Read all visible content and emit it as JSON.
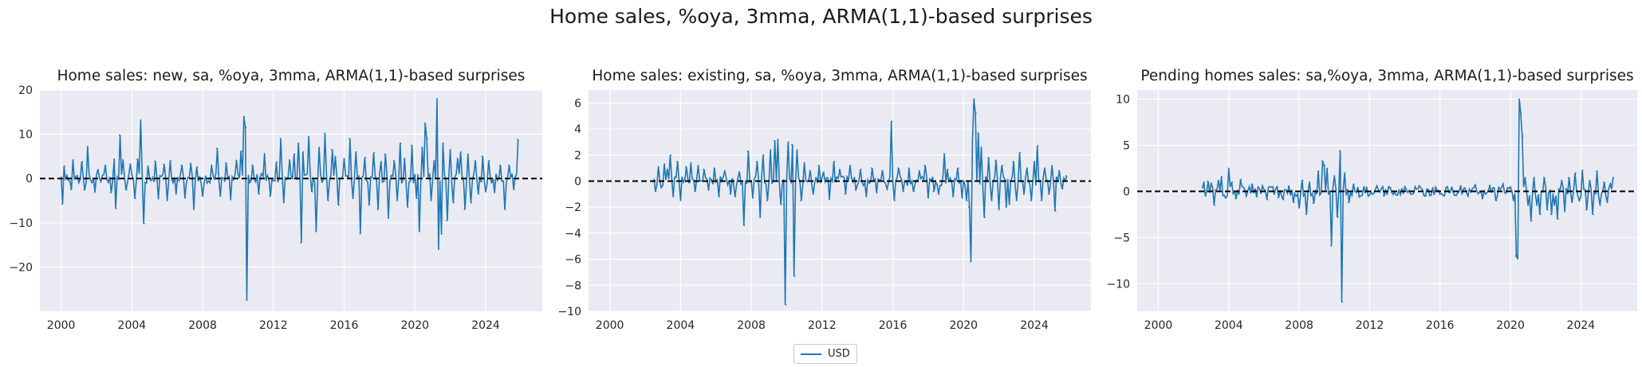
{
  "suptitle": "Home sales, %oya, 3mma, ARMA(1,1)-based surprises",
  "colors": {
    "line": "#1f77b4",
    "plot_bg": "#eaeaf2",
    "grid": "#ffffff",
    "zero_line": "#000000"
  },
  "chart_data": [
    {
      "type": "line",
      "title": "Home sales: new, sa, %oya, 3mma, ARMA(1,1)-based surprises",
      "series_name": "USD",
      "xlim": [
        1998.8,
        2027.2
      ],
      "ylim": [
        -30,
        20
      ],
      "yticks": [
        -20,
        -10,
        0,
        10,
        20
      ],
      "xticks": [
        2000,
        2004,
        2008,
        2012,
        2016,
        2020,
        2024
      ],
      "data_start": 2000.0,
      "data_end": 2025.9,
      "spikes": [
        [
          2000.05,
          -5.8
        ],
        [
          2000.2,
          2.8
        ],
        [
          2000.55,
          -2.5
        ],
        [
          2000.7,
          4.2
        ],
        [
          2001.2,
          3.8
        ],
        [
          2001.3,
          -2.6
        ],
        [
          2001.5,
          7.2
        ],
        [
          2001.9,
          -3.1
        ],
        [
          2002.1,
          2.0
        ],
        [
          2002.5,
          3.0
        ],
        [
          2002.8,
          -3.2
        ],
        [
          2003.0,
          4.4
        ],
        [
          2003.1,
          -6.8
        ],
        [
          2003.3,
          9.8
        ],
        [
          2003.5,
          4.2
        ],
        [
          2003.7,
          -2.6
        ],
        [
          2003.9,
          3.3
        ],
        [
          2004.2,
          -4.5
        ],
        [
          2004.3,
          4.4
        ],
        [
          2004.5,
          13.2
        ],
        [
          2004.7,
          -10.2
        ],
        [
          2004.9,
          2.8
        ],
        [
          2005.3,
          3.9
        ],
        [
          2005.5,
          -4.6
        ],
        [
          2005.8,
          3.2
        ],
        [
          2006.0,
          -5.0
        ],
        [
          2006.2,
          4.0
        ],
        [
          2006.5,
          -3.5
        ],
        [
          2006.8,
          3.0
        ],
        [
          2007.0,
          -4.4
        ],
        [
          2007.3,
          3.4
        ],
        [
          2007.5,
          -7.0
        ],
        [
          2007.7,
          2.6
        ],
        [
          2008.0,
          -4.0
        ],
        [
          2008.5,
          3.0
        ],
        [
          2008.8,
          6.8
        ],
        [
          2009.0,
          -4.0
        ],
        [
          2009.3,
          3.5
        ],
        [
          2009.6,
          -4.8
        ],
        [
          2009.9,
          4.1
        ],
        [
          2010.2,
          6.2
        ],
        [
          2010.35,
          14.0
        ],
        [
          2010.45,
          11.5
        ],
        [
          2010.5,
          -27.5
        ],
        [
          2010.8,
          3.0
        ],
        [
          2011.2,
          -3.5
        ],
        [
          2011.5,
          5.6
        ],
        [
          2011.8,
          -4.0
        ],
        [
          2012.2,
          3.7
        ],
        [
          2012.4,
          9.0
        ],
        [
          2012.6,
          -5.5
        ],
        [
          2012.9,
          4.2
        ],
        [
          2013.2,
          5.5
        ],
        [
          2013.4,
          8.0
        ],
        [
          2013.55,
          -14.5
        ],
        [
          2013.7,
          6.0
        ],
        [
          2014.0,
          9.5
        ],
        [
          2014.2,
          -3.0
        ],
        [
          2014.4,
          -12.0
        ],
        [
          2014.6,
          7.0
        ],
        [
          2014.9,
          10.2
        ],
        [
          2015.1,
          -5.0
        ],
        [
          2015.3,
          6.5
        ],
        [
          2015.5,
          5.0
        ],
        [
          2015.7,
          -6.0
        ],
        [
          2016.0,
          4.5
        ],
        [
          2016.3,
          9.0
        ],
        [
          2016.5,
          -4.5
        ],
        [
          2016.7,
          6.0
        ],
        [
          2016.9,
          -12.5
        ],
        [
          2017.2,
          4.7
        ],
        [
          2017.4,
          -6.0
        ],
        [
          2017.7,
          5.8
        ],
        [
          2017.9,
          -7.0
        ],
        [
          2018.1,
          3.8
        ],
        [
          2018.3,
          5.5
        ],
        [
          2018.5,
          -9.0
        ],
        [
          2018.8,
          4.0
        ],
        [
          2019.0,
          -5.0
        ],
        [
          2019.2,
          8.0
        ],
        [
          2019.4,
          4.5
        ],
        [
          2019.6,
          -6.5
        ],
        [
          2019.8,
          7.5
        ],
        [
          2020.1,
          -4.5
        ],
        [
          2020.25,
          -12.0
        ],
        [
          2020.4,
          7.0
        ],
        [
          2020.55,
          12.5
        ],
        [
          2020.7,
          9.0
        ],
        [
          2020.9,
          -5.0
        ],
        [
          2021.1,
          4.0
        ],
        [
          2021.25,
          18.0
        ],
        [
          2021.35,
          -16.0
        ],
        [
          2021.5,
          -12.5
        ],
        [
          2021.6,
          8.0
        ],
        [
          2021.8,
          -9.5
        ],
        [
          2022.0,
          6.5
        ],
        [
          2022.2,
          -5.5
        ],
        [
          2022.4,
          4.5
        ],
        [
          2022.6,
          6.0
        ],
        [
          2022.8,
          -7.0
        ],
        [
          2023.0,
          5.5
        ],
        [
          2023.2,
          -5.5
        ],
        [
          2023.4,
          4.0
        ],
        [
          2023.6,
          -3.5
        ],
        [
          2023.8,
          5.0
        ],
        [
          2024.0,
          -3.0
        ],
        [
          2024.2,
          4.0
        ],
        [
          2024.5,
          -3.2
        ],
        [
          2024.8,
          3.0
        ],
        [
          2025.1,
          -7.0
        ],
        [
          2025.3,
          3.0
        ],
        [
          2025.6,
          -2.5
        ],
        [
          2025.8,
          8.8
        ]
      ]
    },
    {
      "type": "line",
      "title": "Home sales: existing, sa, %oya, 3mma, ARMA(1,1)-based surprises",
      "series_name": "USD",
      "xlim": [
        1998.8,
        2027.2
      ],
      "ylim": [
        -10,
        7
      ],
      "yticks": [
        -10,
        -8,
        -6,
        -4,
        -2,
        0,
        2,
        4,
        6
      ],
      "xticks": [
        2000,
        2004,
        2008,
        2012,
        2016,
        2020,
        2024
      ],
      "data_start": 2002.5,
      "data_end": 2025.9,
      "spikes": [
        [
          2002.6,
          -0.8
        ],
        [
          2002.75,
          1.1
        ],
        [
          2002.9,
          -0.5
        ],
        [
          2003.1,
          1.3
        ],
        [
          2003.25,
          0.9
        ],
        [
          2003.45,
          2.0
        ],
        [
          2003.6,
          -1.2
        ],
        [
          2003.8,
          1.5
        ],
        [
          2004.0,
          -1.5
        ],
        [
          2004.3,
          1.1
        ],
        [
          2004.6,
          1.4
        ],
        [
          2004.8,
          -0.8
        ],
        [
          2005.0,
          1.2
        ],
        [
          2005.3,
          0.9
        ],
        [
          2005.6,
          -0.7
        ],
        [
          2005.9,
          1.0
        ],
        [
          2006.2,
          -1.2
        ],
        [
          2006.5,
          0.8
        ],
        [
          2006.8,
          -1.0
        ],
        [
          2007.1,
          -1.2
        ],
        [
          2007.3,
          0.7
        ],
        [
          2007.6,
          -3.4
        ],
        [
          2007.8,
          2.3
        ],
        [
          2008.1,
          -1.3
        ],
        [
          2008.3,
          1.5
        ],
        [
          2008.5,
          -2.8
        ],
        [
          2008.7,
          2.0
        ],
        [
          2008.9,
          -1.5
        ],
        [
          2009.1,
          2.4
        ],
        [
          2009.3,
          3.1
        ],
        [
          2009.5,
          3.2
        ],
        [
          2009.7,
          -1.8
        ],
        [
          2009.95,
          -9.5
        ],
        [
          2010.1,
          3.0
        ],
        [
          2010.3,
          2.8
        ],
        [
          2010.45,
          -7.3
        ],
        [
          2010.6,
          2.4
        ],
        [
          2010.8,
          -1.5
        ],
        [
          2011.0,
          1.4
        ],
        [
          2011.3,
          0.8
        ],
        [
          2011.5,
          -1.0
        ],
        [
          2011.8,
          1.2
        ],
        [
          2012.1,
          0.7
        ],
        [
          2012.4,
          -1.4
        ],
        [
          2012.7,
          1.5
        ],
        [
          2013.0,
          0.9
        ],
        [
          2013.3,
          -1.0
        ],
        [
          2013.6,
          1.2
        ],
        [
          2013.9,
          -0.7
        ],
        [
          2014.2,
          0.9
        ],
        [
          2014.5,
          -1.2
        ],
        [
          2014.8,
          1.0
        ],
        [
          2015.1,
          -0.9
        ],
        [
          2015.4,
          0.8
        ],
        [
          2015.7,
          -0.6
        ],
        [
          2015.95,
          4.6
        ],
        [
          2016.1,
          -1.5
        ],
        [
          2016.3,
          1.0
        ],
        [
          2016.6,
          -0.8
        ],
        [
          2016.9,
          1.0
        ],
        [
          2017.2,
          -0.8
        ],
        [
          2017.5,
          0.8
        ],
        [
          2017.8,
          1.2
        ],
        [
          2018.0,
          -1.3
        ],
        [
          2018.3,
          -0.8
        ],
        [
          2018.6,
          -1.0
        ],
        [
          2018.9,
          2.1
        ],
        [
          2019.1,
          0.9
        ],
        [
          2019.4,
          -1.2
        ],
        [
          2019.7,
          1.0
        ],
        [
          2019.95,
          -1.3
        ],
        [
          2020.2,
          -1.5
        ],
        [
          2020.3,
          -2.0
        ],
        [
          2020.4,
          -6.2
        ],
        [
          2020.5,
          3.0
        ],
        [
          2020.6,
          6.3
        ],
        [
          2020.7,
          5.2
        ],
        [
          2020.8,
          3.7
        ],
        [
          2021.0,
          2.6
        ],
        [
          2021.2,
          -2.8
        ],
        [
          2021.4,
          1.8
        ],
        [
          2021.6,
          -1.5
        ],
        [
          2021.8,
          1.6
        ],
        [
          2022.0,
          -2.2
        ],
        [
          2022.2,
          1.2
        ],
        [
          2022.4,
          -2.0
        ],
        [
          2022.6,
          -1.8
        ],
        [
          2022.8,
          1.5
        ],
        [
          2023.0,
          -1.5
        ],
        [
          2023.2,
          2.2
        ],
        [
          2023.4,
          -1.0
        ],
        [
          2023.6,
          1.0
        ],
        [
          2023.8,
          -1.5
        ],
        [
          2024.0,
          1.5
        ],
        [
          2024.2,
          2.7
        ],
        [
          2024.4,
          -1.5
        ],
        [
          2024.6,
          1.0
        ],
        [
          2024.8,
          -1.0
        ],
        [
          2025.0,
          1.2
        ],
        [
          2025.2,
          -2.3
        ],
        [
          2025.4,
          0.8
        ],
        [
          2025.6,
          -0.6
        ],
        [
          2025.8,
          0.4
        ]
      ]
    },
    {
      "type": "line",
      "title": "Pending homes sales: sa,%oya, 3mma, ARMA(1,1)-based surprises",
      "series_name": "USD",
      "xlim": [
        1998.8,
        2027.2
      ],
      "ylim": [
        -13,
        11
      ],
      "yticks": [
        -10,
        -5,
        0,
        5,
        10
      ],
      "xticks": [
        2000,
        2004,
        2008,
        2012,
        2016,
        2020,
        2024
      ],
      "data_start": 2002.5,
      "data_end": 2025.9,
      "spikes": [
        [
          2002.6,
          1.0
        ],
        [
          2002.7,
          -0.5
        ],
        [
          2002.8,
          1.1
        ],
        [
          2003.0,
          0.9
        ],
        [
          2003.2,
          -1.5
        ],
        [
          2003.4,
          1.2
        ],
        [
          2003.6,
          1.6
        ],
        [
          2003.8,
          -0.7
        ],
        [
          2004.0,
          2.5
        ],
        [
          2004.2,
          1.0
        ],
        [
          2004.4,
          -0.8
        ],
        [
          2004.7,
          1.3
        ],
        [
          2005.0,
          -0.5
        ],
        [
          2005.3,
          0.8
        ],
        [
          2005.6,
          -0.6
        ],
        [
          2005.9,
          0.6
        ],
        [
          2006.2,
          -0.9
        ],
        [
          2006.5,
          0.5
        ],
        [
          2006.8,
          -0.7
        ],
        [
          2007.1,
          -0.9
        ],
        [
          2007.4,
          0.6
        ],
        [
          2007.7,
          -1.2
        ],
        [
          2008.0,
          -1.8
        ],
        [
          2008.2,
          1.2
        ],
        [
          2008.4,
          -2.5
        ],
        [
          2008.6,
          1.0
        ],
        [
          2008.8,
          -1.3
        ],
        [
          2009.1,
          2.2
        ],
        [
          2009.3,
          3.3
        ],
        [
          2009.45,
          2.8
        ],
        [
          2009.6,
          2.5
        ],
        [
          2009.8,
          -5.9
        ],
        [
          2010.0,
          1.7
        ],
        [
          2010.2,
          -2.8
        ],
        [
          2010.3,
          4.4
        ],
        [
          2010.45,
          -12.0
        ],
        [
          2010.6,
          2.0
        ],
        [
          2010.8,
          -1.2
        ],
        [
          2011.1,
          0.8
        ],
        [
          2011.4,
          -0.6
        ],
        [
          2011.7,
          0.5
        ],
        [
          2012.0,
          -0.4
        ],
        [
          2012.4,
          0.6
        ],
        [
          2012.8,
          -0.5
        ],
        [
          2013.2,
          0.4
        ],
        [
          2013.6,
          -0.4
        ],
        [
          2014.0,
          0.5
        ],
        [
          2014.4,
          -0.3
        ],
        [
          2014.8,
          0.6
        ],
        [
          2015.2,
          -0.5
        ],
        [
          2015.6,
          0.4
        ],
        [
          2016.0,
          -0.3
        ],
        [
          2016.4,
          0.5
        ],
        [
          2016.8,
          -0.4
        ],
        [
          2017.2,
          0.6
        ],
        [
          2017.6,
          -0.5
        ],
        [
          2018.0,
          0.7
        ],
        [
          2018.4,
          -0.8
        ],
        [
          2018.8,
          0.6
        ],
        [
          2019.2,
          -1.0
        ],
        [
          2019.6,
          0.8
        ],
        [
          2020.0,
          0.5
        ],
        [
          2020.2,
          -1.0
        ],
        [
          2020.3,
          -7.0
        ],
        [
          2020.4,
          -7.3
        ],
        [
          2020.5,
          10.0
        ],
        [
          2020.6,
          8.5
        ],
        [
          2020.7,
          6.0
        ],
        [
          2020.85,
          1.5
        ],
        [
          2021.0,
          -1.5
        ],
        [
          2021.2,
          -3.2
        ],
        [
          2021.35,
          1.5
        ],
        [
          2021.5,
          -1.5
        ],
        [
          2021.7,
          -2.5
        ],
        [
          2021.9,
          1.5
        ],
        [
          2022.1,
          -2.0
        ],
        [
          2022.3,
          -2.5
        ],
        [
          2022.5,
          -1.5
        ],
        [
          2022.7,
          -3.0
        ],
        [
          2022.9,
          1.2
        ],
        [
          2023.1,
          -2.2
        ],
        [
          2023.3,
          1.5
        ],
        [
          2023.5,
          -1.2
        ],
        [
          2023.7,
          2.0
        ],
        [
          2023.9,
          -1.0
        ],
        [
          2024.1,
          2.3
        ],
        [
          2024.3,
          -2.0
        ],
        [
          2024.5,
          1.2
        ],
        [
          2024.7,
          -2.5
        ],
        [
          2024.9,
          2.2
        ],
        [
          2025.1,
          -1.5
        ],
        [
          2025.3,
          1.0
        ],
        [
          2025.5,
          -1.2
        ],
        [
          2025.7,
          0.8
        ],
        [
          2025.85,
          1.5
        ]
      ]
    }
  ],
  "legend": {
    "label": "USD"
  }
}
